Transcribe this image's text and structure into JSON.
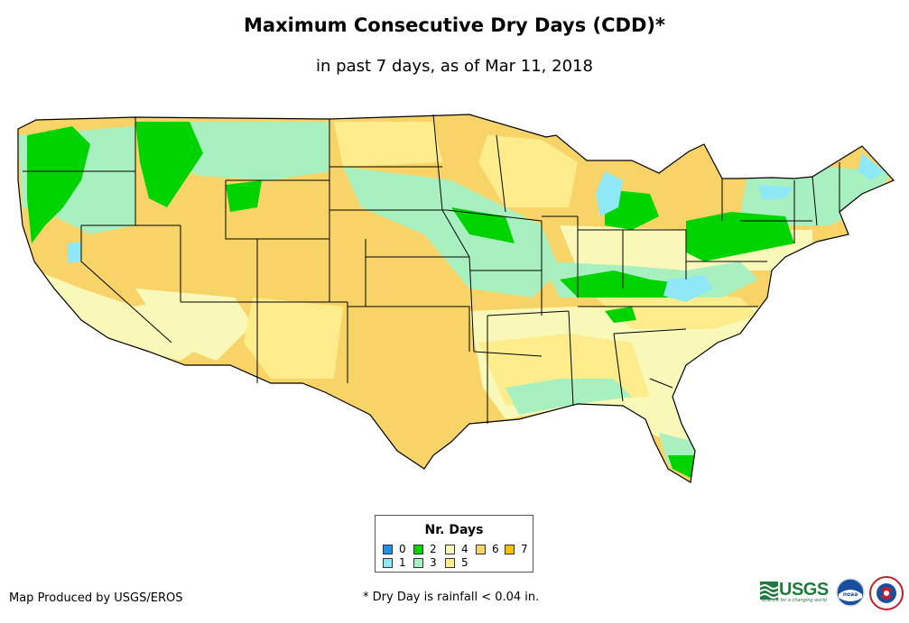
{
  "title": "Maximum Consecutive Dry Days (CDD)*",
  "subtitle": "in past 7 days, as of Mar 11, 2018",
  "legend": {
    "title": "Nr. Days",
    "items": [
      {
        "label": "0",
        "color": "#1e90e8"
      },
      {
        "label": "1",
        "color": "#8fe8f5"
      },
      {
        "label": "2",
        "color": "#00d400"
      },
      {
        "label": "3",
        "color": "#a8f0c0"
      },
      {
        "label": "4",
        "color": "#f8f8b8"
      },
      {
        "label": "5",
        "color": "#fcec8c"
      },
      {
        "label": "6",
        "color": "#f8d468"
      },
      {
        "label": "7",
        "color": "#f8c000"
      }
    ]
  },
  "credit": "Map Produced by USGS/EROS",
  "footnote": "* Dry Day is rainfall < 0.04 in.",
  "logos": {
    "usgs": {
      "text": "USGS",
      "tagline": "science for a changing world"
    },
    "noaa": {
      "text": "noaa"
    }
  }
}
